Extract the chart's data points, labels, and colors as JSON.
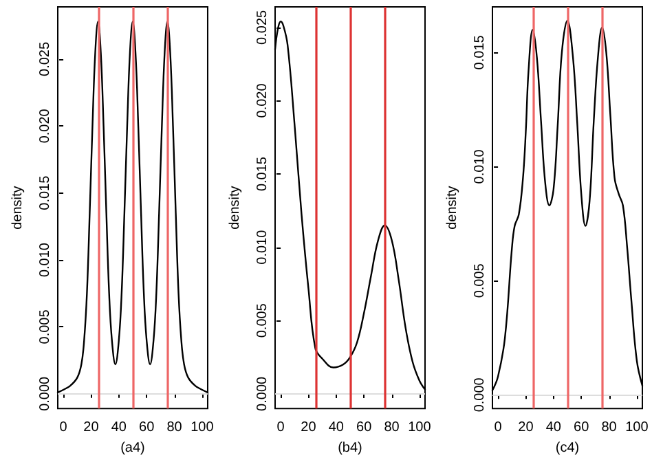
{
  "chart_data": [
    {
      "type": "line",
      "xlabel": "(a4)",
      "ylabel": "density",
      "xlim": [
        -4,
        104
      ],
      "xticks": [
        0,
        20,
        40,
        60,
        80,
        100
      ],
      "ylim": [
        -0.0011,
        0.0289
      ],
      "yticks": [
        {
          "value": 0,
          "label": "0.000"
        },
        0.005,
        {
          "value": 0.01,
          "label": "0.010"
        },
        0.015,
        {
          "value": 0.02,
          "label": "0.020"
        },
        0.025
      ],
      "grid": false,
      "marker": "none",
      "line_style": "solid",
      "series": [
        {
          "color": "#000000",
          "x": [
            -4,
            0,
            5,
            10,
            13,
            15,
            17,
            19,
            21,
            23,
            25,
            27,
            29,
            31,
            33,
            35,
            37.5,
            40,
            42,
            44,
            46,
            48,
            50,
            52,
            54,
            56,
            58,
            60,
            62.5,
            65,
            67,
            69,
            71,
            73,
            75,
            77,
            79,
            81,
            83,
            85,
            87,
            90,
            95,
            100,
            104
          ],
          "values": [
            0.0001,
            0.0003,
            0.0006,
            0.0012,
            0.0022,
            0.004,
            0.0075,
            0.0135,
            0.02,
            0.0255,
            0.0278,
            0.0255,
            0.02,
            0.0135,
            0.0075,
            0.004,
            0.0022,
            0.004,
            0.0075,
            0.0135,
            0.02,
            0.0255,
            0.0278,
            0.0255,
            0.02,
            0.0135,
            0.0075,
            0.004,
            0.0022,
            0.004,
            0.0075,
            0.0135,
            0.02,
            0.0255,
            0.0278,
            0.0255,
            0.02,
            0.0135,
            0.0075,
            0.004,
            0.0022,
            0.0012,
            0.0006,
            0.0003,
            0.0001
          ]
        }
      ],
      "ref_lines": [
        {
          "axis": "y",
          "value": 0,
          "color": "#dddddd"
        },
        {
          "axis": "x",
          "value": 25,
          "color": "#ee6666"
        },
        {
          "axis": "x",
          "value": 50,
          "color": "#ee6666"
        },
        {
          "axis": "x",
          "value": 75,
          "color": "#ee6666"
        }
      ]
    },
    {
      "type": "line",
      "xlabel": "(b4)",
      "ylabel": "density",
      "xlim": [
        -4,
        104
      ],
      "xticks": [
        0,
        20,
        40,
        60,
        80,
        100
      ],
      "ylim": [
        -0.001,
        0.0264
      ],
      "yticks": [
        {
          "value": 0,
          "label": "0.000"
        },
        0.005,
        {
          "value": 0.01,
          "label": "0.010"
        },
        0.015,
        {
          "value": 0.02,
          "label": "0.020"
        },
        0.025
      ],
      "grid": false,
      "marker": "none",
      "line_style": "solid",
      "series": [
        {
          "color": "#000000",
          "x": [
            -4,
            -2,
            0,
            2,
            5,
            10,
            15,
            20,
            25,
            30,
            38,
            45,
            50,
            55,
            60,
            65,
            70,
            75,
            80,
            85,
            90,
            95,
            100,
            104
          ],
          "values": [
            0.0235,
            0.0249,
            0.0254,
            0.0251,
            0.0238,
            0.0184,
            0.0123,
            0.0072,
            0.0031,
            0.0024,
            0.0018,
            0.002,
            0.0025,
            0.0035,
            0.0055,
            0.008,
            0.0104,
            0.0115,
            0.0105,
            0.0078,
            0.0045,
            0.0022,
            0.0009,
            0.0003
          ]
        }
      ],
      "ref_lines": [
        {
          "axis": "y",
          "value": 0,
          "color": "#dddddd"
        },
        {
          "axis": "x",
          "value": 25,
          "color": "#dd3333"
        },
        {
          "axis": "x",
          "value": 50,
          "color": "#dd3333"
        },
        {
          "axis": "x",
          "value": 75,
          "color": "#dd3333"
        }
      ]
    },
    {
      "type": "line",
      "xlabel": "(c4)",
      "ylabel": "density",
      "xlim": [
        -4,
        104
      ],
      "xticks": [
        0,
        20,
        40,
        60,
        80,
        100
      ],
      "ylim": [
        -0.0006,
        0.017
      ],
      "yticks": [
        {
          "value": 0,
          "label": "0.000"
        },
        0.005,
        {
          "value": 0.01,
          "label": "0.010"
        },
        0.015
      ],
      "grid": false,
      "marker": "none",
      "line_style": "solid",
      "series": [
        {
          "color": "#000000",
          "x": [
            -4,
            0,
            5,
            10,
            12,
            15,
            18,
            20,
            22,
            25,
            28,
            31,
            34,
            37,
            40,
            43,
            46,
            50,
            54,
            57,
            60,
            63,
            66,
            69,
            72,
            75,
            78,
            81,
            84,
            87,
            90,
            93,
            96,
            100,
            104
          ],
          "values": [
            0.0002,
            0.0008,
            0.0025,
            0.0064,
            0.0074,
            0.0079,
            0.0095,
            0.0115,
            0.0142,
            0.016,
            0.0148,
            0.012,
            0.0093,
            0.0083,
            0.009,
            0.0118,
            0.015,
            0.0164,
            0.0148,
            0.012,
            0.0088,
            0.0074,
            0.0085,
            0.012,
            0.0148,
            0.0161,
            0.015,
            0.0122,
            0.0095,
            0.0088,
            0.0083,
            0.0065,
            0.0042,
            0.0015,
            0.0004
          ]
        }
      ],
      "ref_lines": [
        {
          "axis": "y",
          "value": 0,
          "color": "#dddddd"
        },
        {
          "axis": "x",
          "value": 25,
          "color": "#ee6666"
        },
        {
          "axis": "x",
          "value": 50,
          "color": "#ee6666"
        },
        {
          "axis": "x",
          "value": 75,
          "color": "#ee6666"
        }
      ]
    }
  ]
}
